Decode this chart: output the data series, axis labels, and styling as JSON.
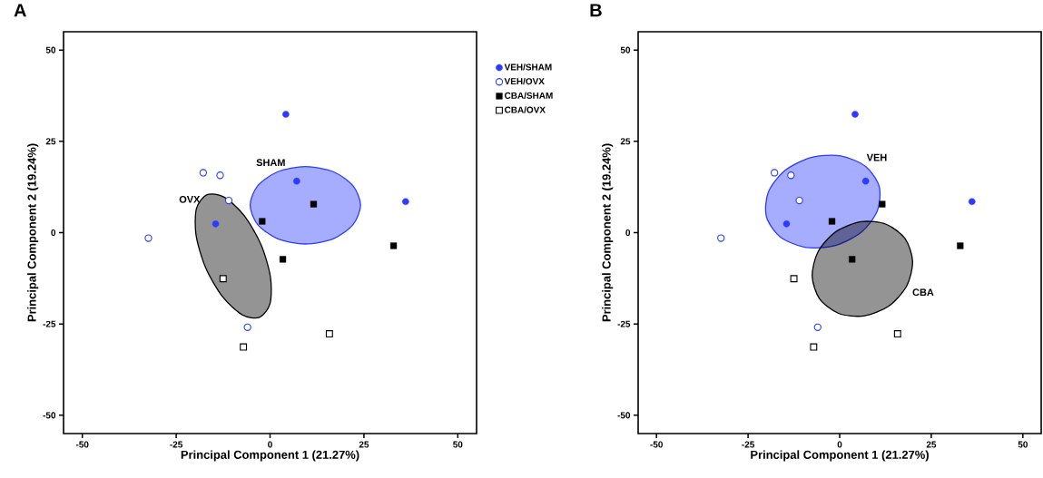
{
  "chart_data": [
    {
      "type": "scatter",
      "title": "A",
      "xlabel": "Principal Component 1 (21.27%)",
      "ylabel": "Principal Component 2 (19.24%)",
      "xlim": [
        -55,
        55
      ],
      "ylim": [
        -55,
        55
      ],
      "xticks": [
        -50,
        -25,
        0,
        25,
        50
      ],
      "yticks": [
        -50,
        -25,
        0,
        25,
        50
      ],
      "legend": "right",
      "series": [
        {
          "type": "area",
          "color": "#2b3bff",
          "x": [
            24.1,
            22.1,
            16.8,
            9.4,
            2.1,
            -3.3,
            -5.3,
            -3.3,
            2.1,
            9.4,
            16.8,
            22.1
          ],
          "values": [
            7.5,
            12.8,
            16.7,
            18.1,
            16.7,
            12.8,
            7.5,
            2.2,
            -1.7,
            -3.1,
            -1.7,
            2.2
          ]
        },
        {
          "type": "area",
          "color": "#000000",
          "x": [
            -2.8,
            0.0,
            0.1,
            -2.4,
            -6.9,
            -12.2,
            -16.8,
            -19.6,
            -19.7,
            -17.2,
            -12.7,
            -7.4
          ],
          "values": [
            -23.2,
            -19.4,
            -12.1,
            -3.3,
            4.7,
            9.7,
            10.4,
            6.6,
            -0.7,
            -9.5,
            -17.5,
            -22.5
          ]
        },
        {
          "name": "VEH/SHAM",
          "marker": "circle",
          "color": "#2b3bff",
          "x": [
            4.2,
            7.1,
            36.1,
            -14.5
          ],
          "values": [
            32.4,
            14.1,
            8.5,
            2.4
          ]
        },
        {
          "name": "VEH/OVX",
          "marker": "circle",
          "color": "#2b3bff",
          "colors": [
            "#ffffff",
            "#ffffff",
            "#ffffff",
            "#ffffff",
            "#ffffff"
          ],
          "x": [
            -17.8,
            -13.3,
            -11.0,
            -32.4,
            -6.0
          ],
          "values": [
            16.4,
            15.7,
            8.8,
            -1.5,
            -25.9
          ]
        },
        {
          "name": "CBA/SHAM",
          "marker": "square",
          "color": "#000000",
          "x": [
            -2.1,
            11.6,
            3.4,
            32.9
          ],
          "values": [
            3.1,
            7.8,
            -7.3,
            -3.6
          ]
        },
        {
          "name": "CBA/OVX",
          "marker": "square",
          "color": "#000000",
          "colors": [
            "#ffffff",
            "#ffffff",
            "#ffffff"
          ],
          "x": [
            -12.5,
            -7.1,
            15.8
          ],
          "values": [
            -12.6,
            -31.3,
            -27.7
          ]
        }
      ],
      "annotations": [
        {
          "text": "SHAM",
          "x": 2.1,
          "y": 16.7
        },
        {
          "text": "OVX",
          "x": -19.6,
          "y": 6.6
        }
      ]
    },
    {
      "type": "scatter",
      "title": "B",
      "xlabel": "Principal Component 1 (21.27%)",
      "ylabel": "Principal Component 2 (19.24%)",
      "xlim": [
        -55,
        55
      ],
      "ylim": [
        -55,
        55
      ],
      "xticks": [
        -50,
        -25,
        0,
        25,
        50
      ],
      "yticks": [
        -50,
        -25,
        0,
        25,
        50
      ],
      "series": [
        {
          "type": "area",
          "color": "#2b3bff",
          "x": [
            10.8,
            7.1,
            0.3,
            -7.8,
            -15.1,
            -19.5,
            -20.0,
            -16.3,
            -9.5,
            -1.4,
            5.9,
            10.3
          ],
          "values": [
            12.6,
            18.1,
            21.0,
            20.6,
            16.9,
            11.0,
            4.4,
            -1.1,
            -4.0,
            -3.6,
            0.1,
            6.0
          ]
        },
        {
          "type": "area",
          "color": "#000000",
          "x": [
            17.9,
            12.7,
            5.9,
            -1.0,
            -5.9,
            -7.5,
            -5.5,
            -0.3,
            6.6,
            13.4,
            18.3,
            19.9
          ],
          "values": [
            -1.7,
            2.3,
            3.0,
            0.3,
            -5.2,
            -11.9,
            -18.1,
            -22.1,
            -22.8,
            -20.1,
            -14.6,
            -7.9
          ]
        },
        {
          "marker": "circle",
          "color": "#2b3bff",
          "x": [
            4.2,
            7.1,
            36.1,
            -14.5
          ],
          "values": [
            32.4,
            14.1,
            8.5,
            2.4
          ]
        },
        {
          "marker": "circle",
          "color": "#2b3bff",
          "colors": [
            "#ffffff",
            "#ffffff",
            "#ffffff",
            "#ffffff",
            "#ffffff"
          ],
          "x": [
            -17.8,
            -13.3,
            -11.0,
            -32.4,
            -6.0
          ],
          "values": [
            16.4,
            15.7,
            8.8,
            -1.5,
            -25.9
          ]
        },
        {
          "marker": "square",
          "color": "#000000",
          "x": [
            -2.1,
            11.6,
            3.4,
            32.9
          ],
          "values": [
            3.1,
            7.8,
            -7.3,
            -3.6
          ]
        },
        {
          "marker": "square",
          "color": "#000000",
          "colors": [
            "#ffffff",
            "#ffffff",
            "#ffffff"
          ],
          "x": [
            -12.5,
            -7.1,
            15.8
          ],
          "values": [
            -12.6,
            -31.3,
            -27.7
          ]
        }
      ],
      "annotations": [
        {
          "text": "VEH",
          "x": 7.1,
          "y": 18.1
        },
        {
          "text": "CBA",
          "x": 18.3,
          "y": -14.6
        }
      ]
    }
  ]
}
